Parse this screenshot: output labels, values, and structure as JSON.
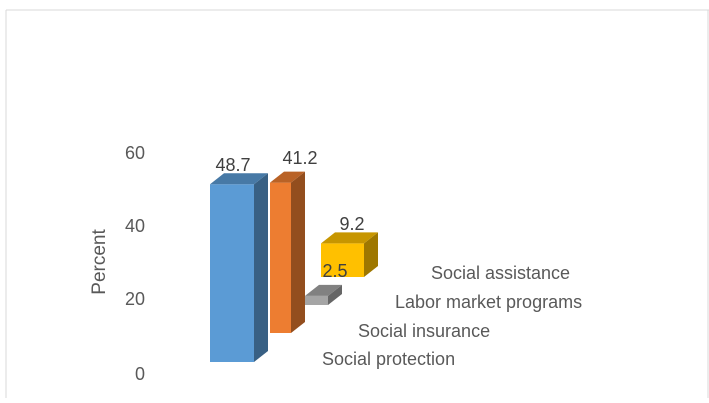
{
  "chart_data": {
    "type": "bar",
    "title": "",
    "xlabel": "",
    "ylabel": "Percent",
    "ylim": [
      0,
      60
    ],
    "yticks": [
      "0",
      "20",
      "40",
      "60"
    ],
    "grid": false,
    "legend": "none",
    "categories": [
      "Social protection",
      "Social insurance",
      "Labor market programs",
      "Social assistance"
    ],
    "values": [
      48.7,
      41.2,
      2.5,
      9.2
    ],
    "data_labels": [
      "48.7",
      "41.2",
      "2.5",
      "9.2"
    ],
    "colors": [
      "#5b9bd5",
      "#ed7d31",
      "#a5a5a5",
      "#ffc000"
    ]
  }
}
